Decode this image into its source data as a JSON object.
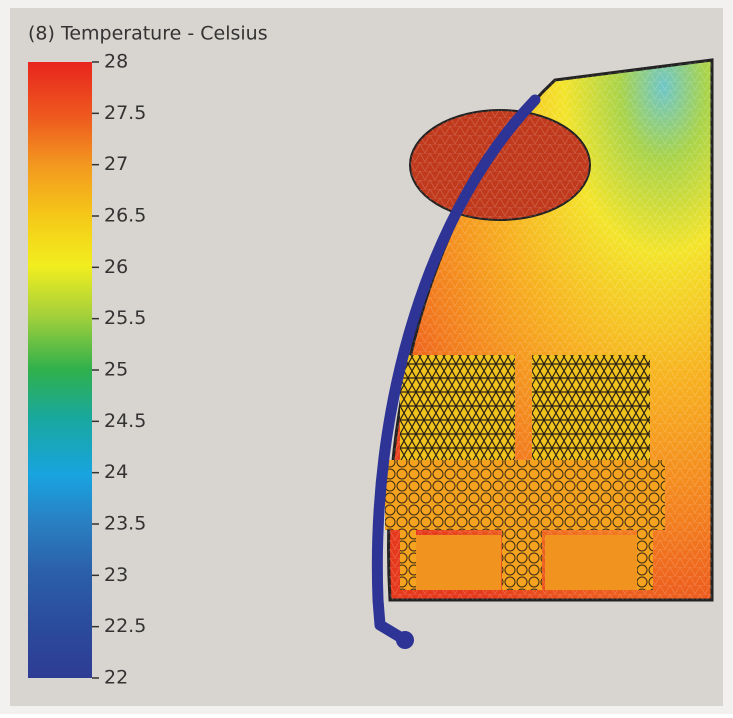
{
  "legend": {
    "title": "(8) Temperature - Celsius",
    "range": [
      22,
      28
    ],
    "ticks": [
      22,
      22.5,
      23,
      23.5,
      24,
      24.5,
      25,
      25.5,
      26,
      26.5,
      27,
      27.5,
      28
    ]
  }
}
